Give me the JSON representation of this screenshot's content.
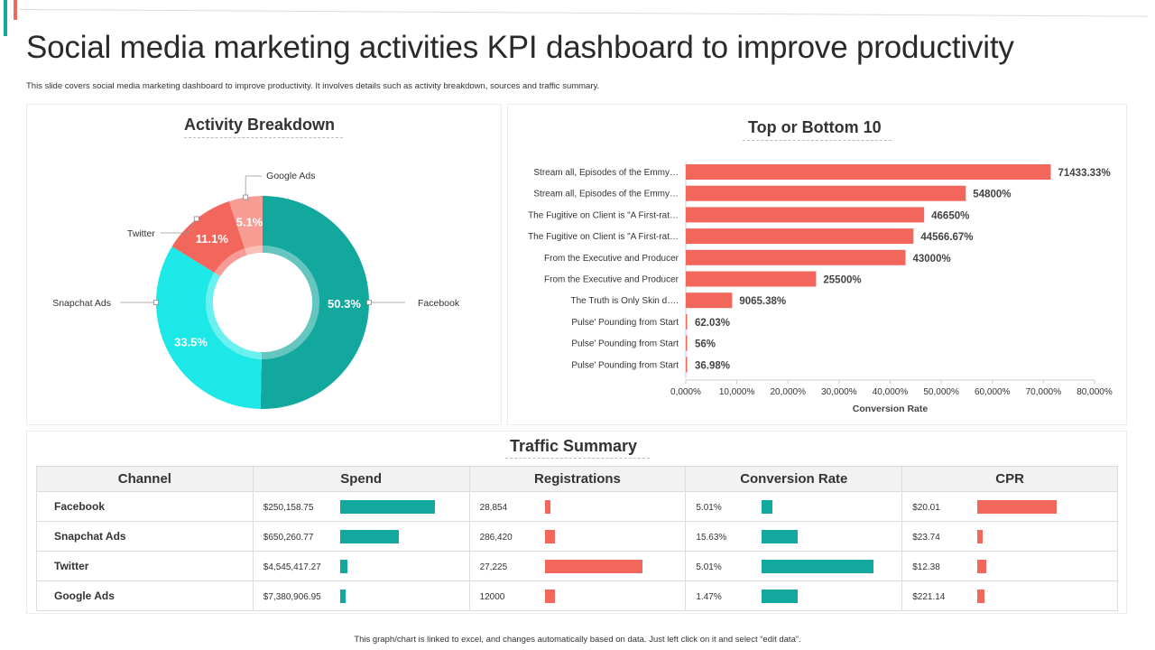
{
  "page": {
    "title": "Social media marketing activities KPI dashboard to improve productivity",
    "subtitle": "This slide covers social media marketing dashboard to improve productivity. It involves details such as activity breakdown, sources and traffic summary.",
    "footer": "This graph/chart is linked to excel, and changes automatically based on data. Just left click on it and select “edit data”."
  },
  "colors": {
    "teal": "#13a89e",
    "cyan": "#1ce8e8",
    "red": "#f2665c",
    "light_red": "#f79d93"
  },
  "chart_data": [
    {
      "type": "pie",
      "title": "Activity Breakdown",
      "slices": [
        {
          "name": "Facebook",
          "value": 50.3,
          "label": "50.3%",
          "color": "#13a89e"
        },
        {
          "name": "Snapchat Ads",
          "value": 33.5,
          "label": "33.5%",
          "color": "#1ce8e8"
        },
        {
          "name": "Twitter",
          "value": 11.1,
          "label": "11.1%",
          "color": "#f2665c"
        },
        {
          "name": "Google Ads",
          "value": 5.1,
          "label": "5.1%",
          "color": "#f79d93"
        }
      ]
    },
    {
      "type": "bar",
      "orientation": "horizontal",
      "title": "Top or Bottom 10",
      "xlabel": "Conversion Rate",
      "xlim": [
        0,
        80000
      ],
      "xticks": [
        "0,000%",
        "10,000%",
        "20,000%",
        "30,000%",
        "40,000%",
        "50,000%",
        "60,000%",
        "70,000%",
        "80,000%"
      ],
      "categories": [
        "Stream all, Episodes of the Emmy…",
        "Stream all, Episodes of the Emmy…",
        "The Fugitive on Client  is \"A First-rat…",
        "The Fugitive on Client  is \"A First-rat…",
        "From the Executive and Producer",
        "From the Executive and Producer",
        "The Truth is Only Skin d….",
        "Pulse' Pounding from Start",
        "Pulse' Pounding from Start",
        "Pulse' Pounding from Start"
      ],
      "values": [
        71433.33,
        54800,
        46650,
        44566.67,
        43000,
        25500,
        9065.38,
        62.03,
        56,
        36.98
      ],
      "labels": [
        "71433.33%",
        "54800%",
        "46650%",
        "44566.67%",
        "43000%",
        "25500%",
        "9065.38%",
        "62.03%",
        "56%",
        "36.98%"
      ]
    }
  ],
  "traffic": {
    "title": "Traffic Summary",
    "headers": [
      "Channel",
      "Spend",
      "Registrations",
      "Conversion Rate",
      "CPR"
    ],
    "rows": [
      {
        "channel": "Facebook",
        "spend": "$250,158.75",
        "registrations": "28,854",
        "conversion": "5.01%",
        "cpr": "$20.01"
      },
      {
        "channel": "Snapchat Ads",
        "spend": "$650,260.77",
        "registrations": "286,420",
        "conversion": "15.63%",
        "cpr": "$23.74"
      },
      {
        "channel": "Twitter",
        "spend": "$4,545,417.27",
        "registrations": "27,225",
        "conversion": "5.01%",
        "cpr": "$12.38"
      },
      {
        "channel": "Google  Ads",
        "spend": "$7,380,906.95",
        "registrations": "12000",
        "conversion": "1.47%",
        "cpr": "$221.14"
      }
    ],
    "bar_levels": {
      "spend": [
        1.0,
        0.62,
        0.08,
        0.05
      ],
      "registrations": [
        0.05,
        0.1,
        1.0,
        0.1
      ],
      "conversion": [
        0.1,
        0.32,
        1.0,
        0.32
      ],
      "cpr": [
        1.0,
        0.06,
        0.11,
        0.09
      ]
    },
    "bar_colors": {
      "spend": "#13a89e",
      "registrations": "#f2665c",
      "conversion": "#13a89e",
      "cpr": "#f2665c"
    }
  }
}
